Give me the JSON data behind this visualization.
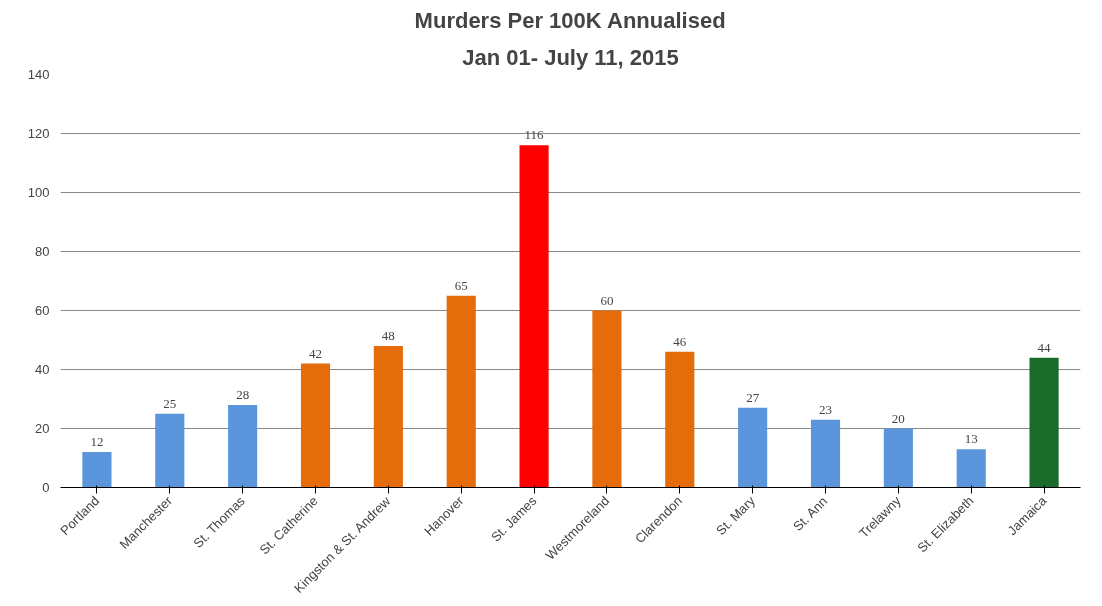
{
  "chart_data": {
    "type": "bar",
    "title": "Murders Per 100K Annualised",
    "subtitle": "Jan 01- July 11, 2015",
    "categories": [
      "Portland",
      "Manchester",
      "St. Thomas",
      "St. Catherine",
      "Kingston & St. Andrew",
      "Hanover",
      "St. James",
      "Westmoreland",
      "Clarendon",
      "St. Mary",
      "St. Ann",
      "Trelawny",
      "St. Elizabeth",
      "Jamaica"
    ],
    "values": [
      12,
      25,
      28,
      42,
      48,
      65,
      116,
      60,
      46,
      27,
      23,
      20,
      13,
      44
    ],
    "colors": [
      "#5b96dc",
      "#5b96dc",
      "#5b96dc",
      "#e46c0a",
      "#e46c0a",
      "#e46c0a",
      "#ff0000",
      "#e46c0a",
      "#e46c0a",
      "#5b96dc",
      "#5b96dc",
      "#5b96dc",
      "#5b96dc",
      "#1a6b2a"
    ],
    "ylim": [
      0,
      140
    ],
    "yticks": [
      0,
      20,
      40,
      60,
      80,
      100,
      120,
      140
    ],
    "grid": "y",
    "data_labels": true
  }
}
